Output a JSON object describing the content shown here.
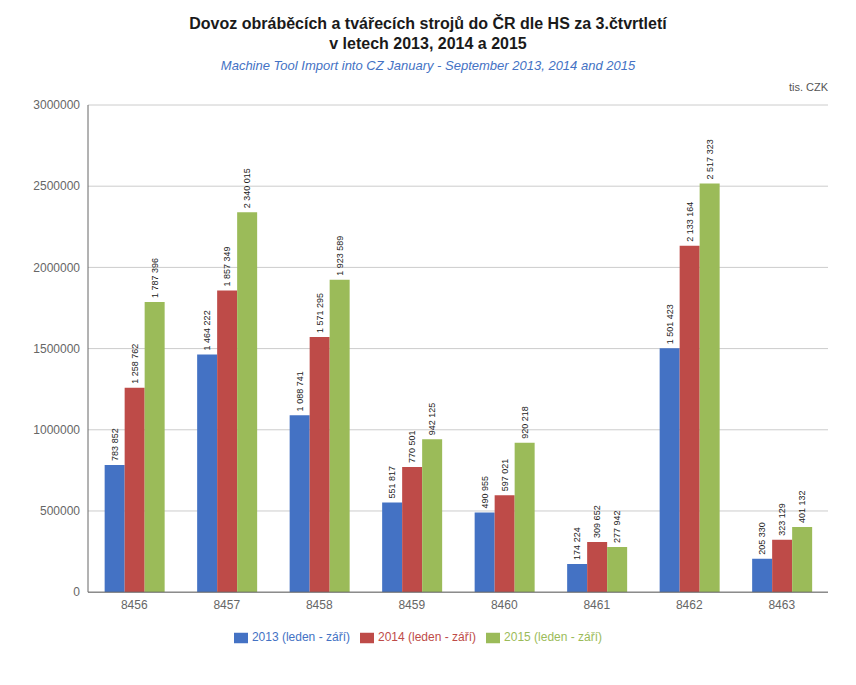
{
  "chart_data": {
    "type": "bar",
    "title": "Dovoz obráběcích a tvářecích strojů do ČR dle HS za 3.čtvrtletí\nv letech 2013, 2014 a 2015",
    "subtitle": "Machine Tool Import into CZ January - September 2013, 2014 and 2015",
    "annotations": [
      "tis. CZK"
    ],
    "categories": [
      "8456",
      "8457",
      "8458",
      "8459",
      "8460",
      "8461",
      "8462",
      "8463"
    ],
    "series": [
      {
        "name": "2013 (leden - září)",
        "color": "#4472C4",
        "values": [
          783852,
          1464222,
          1088741,
          551817,
          490955,
          174224,
          1501423,
          205330
        ],
        "value_labels": [
          "783 852",
          "1 464 222",
          "1 088 741",
          "551 817",
          "490 955",
          "174 224",
          "1 501 423",
          "205 330"
        ]
      },
      {
        "name": "2014 (leden - září)",
        "color": "#BE4B48",
        "values": [
          1258762,
          1857349,
          1571295,
          770501,
          597021,
          309652,
          2133164,
          323129
        ],
        "value_labels": [
          "1 258 762",
          "1 857 349",
          "1 571 295",
          "770 501",
          "597 021",
          "309 652",
          "2 133 164",
          "323 129"
        ]
      },
      {
        "name": "2015 (leden - září)",
        "color": "#9BBB59",
        "values": [
          1787396,
          2340015,
          1923589,
          942125,
          920218,
          277942,
          2517323,
          401132
        ],
        "value_labels": [
          "1 787 396",
          "2 340 015",
          "1 923 589",
          "942 125",
          "920 218",
          "277 942",
          "2 517 323",
          "401 132"
        ]
      }
    ],
    "ylim": [
      0,
      3000000
    ],
    "yticks": [
      0,
      500000,
      1000000,
      1500000,
      2000000,
      2500000,
      3000000
    ],
    "grid": true,
    "legend": "bottom",
    "data_labels": true
  }
}
